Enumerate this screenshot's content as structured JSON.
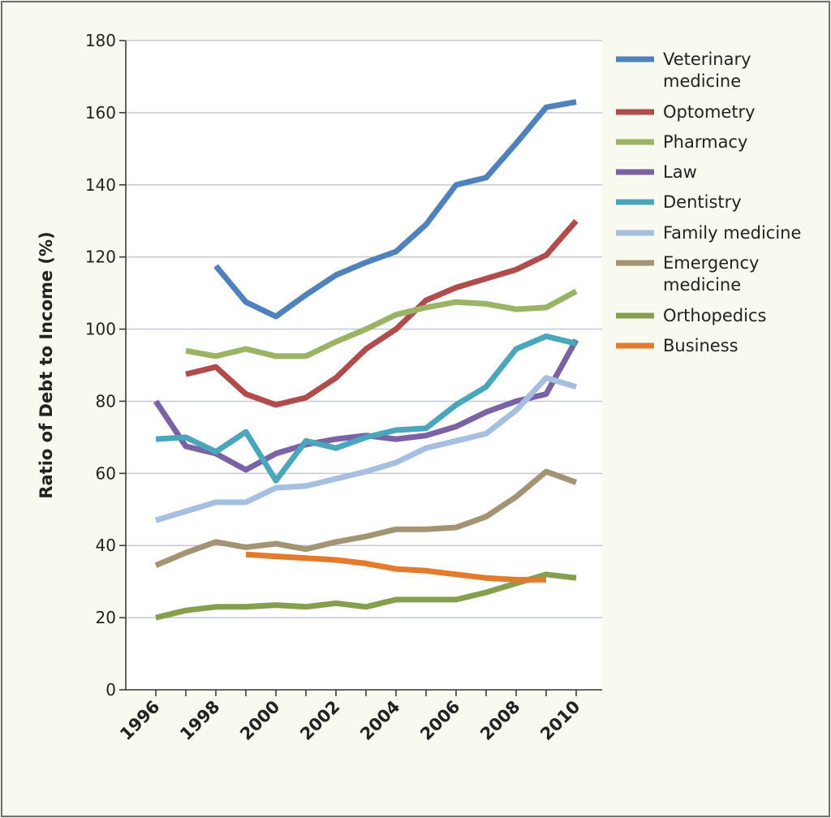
{
  "chart_data": {
    "type": "line",
    "title": "",
    "xlabel": "",
    "ylabel": "Ratio of Debt to Income (%)",
    "xlim": [
      1996,
      2010
    ],
    "ylim": [
      0,
      180
    ],
    "x_ticks": [
      1996,
      1998,
      2000,
      2002,
      2004,
      2006,
      2008,
      2010
    ],
    "y_ticks": [
      0,
      20,
      40,
      60,
      80,
      100,
      120,
      140,
      160,
      180
    ],
    "grid": "horizontal",
    "legend_position": "right",
    "series": [
      {
        "name": "Veterinary medicine",
        "color": "#4f81bd",
        "x": [
          1998,
          1999,
          2000,
          2001,
          2002,
          2003,
          2004,
          2005,
          2006,
          2007,
          2008,
          2009,
          2010
        ],
        "y": [
          117.5,
          107.5,
          103.5,
          109.5,
          115,
          118.5,
          121.5,
          129,
          140,
          142,
          151.5,
          161.5,
          163
        ]
      },
      {
        "name": "Optometry",
        "color": "#b04c4b",
        "x": [
          1997,
          1998,
          1999,
          2000,
          2001,
          2002,
          2003,
          2004,
          2005,
          2006,
          2007,
          2008,
          2009,
          2010
        ],
        "y": [
          87.5,
          89.5,
          82,
          79,
          81,
          86.5,
          94.5,
          100,
          108,
          111.5,
          114,
          116.5,
          120.5,
          130
        ]
      },
      {
        "name": "Pharmacy",
        "color": "#9bb365",
        "x": [
          1997,
          1998,
          1999,
          2000,
          2001,
          2002,
          2003,
          2004,
          2005,
          2006,
          2007,
          2008,
          2009,
          2010
        ],
        "y": [
          94,
          92.5,
          94.5,
          92.5,
          92.5,
          96.5,
          100,
          104,
          106,
          107.5,
          107,
          105.5,
          106,
          110.5
        ]
      },
      {
        "name": "Law",
        "color": "#7a62a5",
        "x": [
          1996,
          1997,
          1998,
          1999,
          2000,
          2001,
          2002,
          2003,
          2004,
          2005,
          2006,
          2007,
          2008,
          2009,
          2010
        ],
        "y": [
          80,
          67.5,
          65.5,
          61,
          65.5,
          68,
          69.5,
          70.5,
          69.5,
          70.5,
          73,
          77,
          80,
          82,
          97
        ]
      },
      {
        "name": "Dentistry",
        "color": "#4aa6bb",
        "x": [
          1996,
          1997,
          1998,
          1999,
          2000,
          2001,
          2002,
          2003,
          2004,
          2005,
          2006,
          2007,
          2008,
          2009,
          2010
        ],
        "y": [
          69.5,
          70,
          66,
          71.5,
          58,
          69,
          67,
          70,
          72,
          72.5,
          79,
          84,
          94.5,
          98,
          96
        ]
      },
      {
        "name": "Family medicine",
        "color": "#a6bfe0",
        "x": [
          1996,
          1997,
          1998,
          1999,
          2000,
          2001,
          2002,
          2003,
          2004,
          2005,
          2006,
          2007,
          2008,
          2009,
          2010
        ],
        "y": [
          47,
          49.5,
          52,
          52,
          56,
          56.5,
          58.5,
          60.5,
          63,
          67,
          69,
          71,
          77.5,
          86.5,
          84
        ]
      },
      {
        "name": "Emergency medicine",
        "color": "#a39473",
        "x": [
          1996,
          1997,
          1998,
          1999,
          2000,
          2001,
          2002,
          2003,
          2004,
          2005,
          2006,
          2007,
          2008,
          2009,
          2010
        ],
        "y": [
          34.5,
          38,
          41,
          39.5,
          40.5,
          39,
          41,
          42.5,
          44.5,
          44.5,
          45,
          48,
          53.5,
          60.5,
          57.5
        ]
      },
      {
        "name": "Orthopedics",
        "color": "#84a04f",
        "x": [
          1996,
          1997,
          1998,
          1999,
          2000,
          2001,
          2002,
          2003,
          2004,
          2005,
          2006,
          2007,
          2008,
          2009,
          2010
        ],
        "y": [
          20,
          22,
          23,
          23,
          23.5,
          23,
          24,
          23,
          25,
          25,
          25,
          27,
          29.5,
          32,
          31
        ]
      },
      {
        "name": "Business",
        "color": "#e27b2e",
        "x": [
          1999,
          2000,
          2001,
          2002,
          2003,
          2004,
          2005,
          2006,
          2007,
          2008,
          2009
        ],
        "y": [
          37.5,
          37,
          36.5,
          36,
          35,
          33.5,
          33,
          32,
          31,
          30.5,
          30.5
        ]
      }
    ]
  }
}
